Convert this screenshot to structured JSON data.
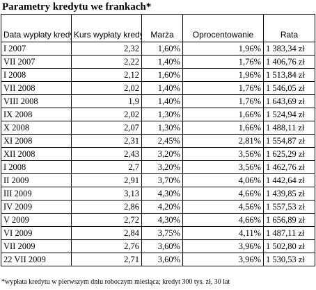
{
  "title": "Parametry kredytu we frankach*",
  "headers": {
    "date": "Data wypłaty kredytu",
    "rate": "Kurs wypłaty kredytu",
    "margin": "Marża",
    "interest": "Oprocentowanie",
    "installment": "Rata"
  },
  "rows": [
    {
      "date": "I 2007",
      "rate": "2,32",
      "margin": "1,60%",
      "interest": "1,96%",
      "installment": "1 383,34 zł"
    },
    {
      "date": "VII 2007",
      "rate": "2,22",
      "margin": "1,40%",
      "interest": "1,76%",
      "installment": "1 406,76 zł"
    },
    {
      "date": "I 2008",
      "rate": "2,12",
      "margin": "1,60%",
      "interest": "1,96%",
      "installment": "1 513,84 zł"
    },
    {
      "date": "VII 2008",
      "rate": "2,02",
      "margin": "1,40%",
      "interest": "1,76%",
      "installment": "1 546,05 zł"
    },
    {
      "date": "VIII 2008",
      "rate": "1,9",
      "margin": "1,40%",
      "interest": "1,76%",
      "installment": "1 643,69 zł"
    },
    {
      "date": "IX 2008",
      "rate": "2,02",
      "margin": "1,30%",
      "interest": "1,66%",
      "installment": "1 524,94 zł"
    },
    {
      "date": "X 2008",
      "rate": "2,07",
      "margin": "1,30%",
      "interest": "1,66%",
      "installment": "1 488,11 zł"
    },
    {
      "date": "XI 2008",
      "rate": "2,31",
      "margin": "2,45%",
      "interest": "2,81%",
      "installment": "1 554,87 zł"
    },
    {
      "date": "XII 2008",
      "rate": "2,43",
      "margin": "3,20%",
      "interest": "3,56%",
      "installment": "1 625,29 zł"
    },
    {
      "date": "I 2008",
      "rate": "2,7",
      "margin": "3,20%",
      "interest": "3,56%",
      "installment": "1 462,76 zł"
    },
    {
      "date": "II 2009",
      "rate": "2,91",
      "margin": "3,70%",
      "interest": "4,06%",
      "installment": "1 442,64 zł"
    },
    {
      "date": "III 2009",
      "rate": "3,13",
      "margin": "4,30%",
      "interest": "4,66%",
      "installment": "1 439,85 zł"
    },
    {
      "date": "IV 2009",
      "rate": "2,86",
      "margin": "4,20%",
      "interest": "4,56%",
      "installment": "1 557,53 zł"
    },
    {
      "date": "V 2009",
      "rate": "2,72",
      "margin": "4,30%",
      "interest": "4,66%",
      "installment": "1 656,89 zł"
    },
    {
      "date": "VI 2009",
      "rate": "2,84",
      "margin": "3,75%",
      "interest": "4,11%",
      "installment": "1 487,11 zł"
    },
    {
      "date": "VII 2009",
      "rate": "2,76",
      "margin": "3,60%",
      "interest": "3,96%",
      "installment": "1 502,80 zł"
    },
    {
      "date": "22 VII 2009",
      "rate": "2,71",
      "margin": "3,60%",
      "interest": "3,96%",
      "installment": "1 530,53 zł"
    }
  ],
  "footnote": "*wypłata kredytu w pierwszym dniu roboczym miesiąca; kredyt 300 tys. zł, 30 lat"
}
